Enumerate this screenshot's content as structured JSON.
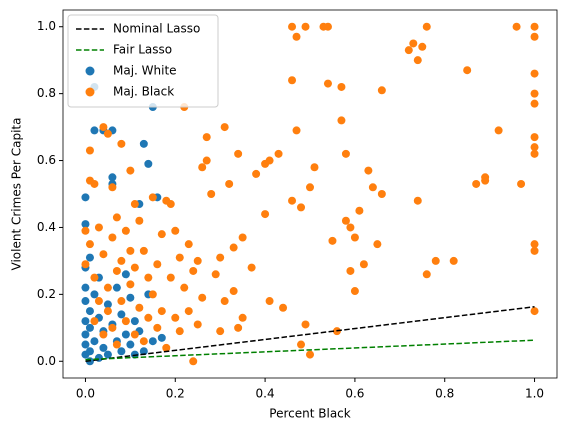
{
  "chart_data": {
    "type": "scatter",
    "xlabel": "Percent Black",
    "ylabel": "Violent Crimes Per Capita",
    "xlim": [
      -0.05,
      1.05
    ],
    "ylim": [
      -0.05,
      1.05
    ],
    "xticks": [
      {
        "value": 0,
        "label": "0.0"
      },
      {
        "value": 0.2,
        "label": "0.2"
      },
      {
        "value": 0.4,
        "label": "0.4"
      },
      {
        "value": 0.6,
        "label": "0.6"
      },
      {
        "value": 0.8,
        "label": "0.8"
      },
      {
        "value": 1,
        "label": "1.0"
      }
    ],
    "yticks": [
      {
        "value": 0,
        "label": "0.0"
      },
      {
        "value": 0.2,
        "label": "0.2"
      },
      {
        "value": 0.4,
        "label": "0.4"
      },
      {
        "value": 0.6,
        "label": "0.6"
      },
      {
        "value": 0.8,
        "label": "0.8"
      },
      {
        "value": 1,
        "label": "1.0"
      }
    ],
    "grid": false,
    "legend": "upper left",
    "series": [
      {
        "name": "Nominal Lasso",
        "type": "line",
        "linestyle": "dashed",
        "color": "#000000",
        "x": [
          0,
          1
        ],
        "values": [
          0,
          0.163
        ]
      },
      {
        "name": "Fair Lasso",
        "type": "line",
        "linestyle": "dashed",
        "color": "#008000",
        "x": [
          0,
          1
        ],
        "values": [
          0.005,
          0.063
        ]
      },
      {
        "name": "Maj. White",
        "type": "scatter",
        "color": "#1f77b4",
        "x": [
          0,
          0,
          0,
          0,
          0,
          0,
          0,
          0,
          0,
          0.01,
          0.01,
          0.01,
          0.01,
          0.01,
          0.02,
          0.02,
          0.02,
          0.02,
          0.03,
          0.03,
          0.03,
          0.04,
          0.04,
          0.04,
          0.05,
          0.05,
          0.06,
          0.06,
          0.06,
          0.06,
          0.07,
          0.07,
          0.08,
          0.08,
          0.09,
          0.09,
          0.1,
          0.1,
          0.11,
          0.11,
          0.12,
          0.12,
          0.13,
          0.13,
          0.14,
          0.14,
          0.15,
          0.15,
          0.16,
          0.17
        ],
        "values": [
          0.02,
          0.05,
          0.08,
          0.12,
          0.18,
          0.22,
          0.28,
          0.41,
          0.49,
          0,
          0.03,
          0.1,
          0.15,
          0.31,
          0.82,
          0.69,
          0.06,
          0.2,
          0.01,
          0.13,
          0.25,
          0.69,
          0.04,
          0.09,
          0.17,
          0.02,
          0.55,
          0.53,
          0.69,
          0.11,
          0.06,
          0.22,
          0.03,
          0.14,
          0.08,
          0.26,
          0.05,
          0.19,
          0.12,
          0.02,
          0.47,
          0.09,
          0.65,
          0.03,
          0.59,
          0.2,
          0.76,
          0.06,
          0.49,
          0.07
        ]
      },
      {
        "name": "Maj. Black",
        "type": "scatter",
        "color": "#ff7f0e",
        "x": [
          0,
          0,
          0.01,
          0.01,
          0.01,
          0.02,
          0.02,
          0.02,
          0.03,
          0.03,
          0.04,
          0.04,
          0.04,
          0.05,
          0.05,
          0.05,
          0.06,
          0.06,
          0.06,
          0.07,
          0.07,
          0.07,
          0.08,
          0.08,
          0.08,
          0.09,
          0.09,
          0.1,
          0.1,
          0.1,
          0.11,
          0.11,
          0.11,
          0.12,
          0.12,
          0.13,
          0.13,
          0.14,
          0.14,
          0.15,
          0.15,
          0.16,
          0.16,
          0.17,
          0.17,
          0.18,
          0.18,
          0.19,
          0.19,
          0.2,
          0.2,
          0.21,
          0.21,
          0.22,
          0.22,
          0.23,
          0.23,
          0.24,
          0.24,
          0.25,
          0.25,
          0.26,
          0.26,
          0.27,
          0.27,
          0.28,
          0.29,
          0.3,
          0.3,
          0.31,
          0.31,
          0.32,
          0.33,
          0.33,
          0.34,
          0.34,
          0.35,
          0.35,
          0.37,
          0.38,
          0.4,
          0.4,
          0.41,
          0.41,
          0.43,
          0.44,
          0.46,
          0.46,
          0.46,
          0.47,
          0.47,
          0.48,
          0.49,
          0.49,
          0.5,
          0.5,
          0.51,
          0.53,
          0.54,
          0.54,
          0.55,
          0.56,
          0.57,
          0.57,
          0.58,
          0.58,
          0.59,
          0.59,
          0.6,
          0.6,
          0.61,
          0.62,
          0.63,
          0.64,
          0.65,
          0.66,
          0.66,
          0.72,
          0.73,
          0.74,
          0.74,
          0.75,
          0.76,
          0.76,
          0.78,
          0.82,
          0.85,
          0.87,
          0.89,
          0.89,
          0.92,
          0.96,
          0.97,
          1,
          1,
          1,
          1,
          1,
          1,
          1,
          1,
          1,
          1,
          1,
          0.48
        ],
        "values": [
          0.29,
          0.39,
          0.63,
          0.54,
          0.35,
          0.53,
          0.25,
          0.12,
          0.4,
          0.18,
          0.7,
          0.32,
          0.08,
          0.68,
          0.22,
          0.15,
          0.52,
          0.37,
          0.1,
          0.43,
          0.27,
          0.05,
          0.65,
          0.3,
          0.18,
          0.39,
          0.12,
          0.57,
          0.33,
          0.23,
          0.47,
          0.28,
          0.08,
          0.42,
          0.16,
          0.33,
          0.06,
          0.25,
          0.13,
          0.49,
          0.2,
          0.29,
          0.1,
          0.38,
          0.15,
          0.48,
          0.04,
          0.47,
          0.25,
          0.39,
          0.13,
          0.31,
          0.09,
          0.76,
          0.22,
          0.35,
          0.15,
          0,
          0.27,
          0.3,
          0.11,
          0.58,
          0.19,
          0.6,
          0.67,
          0.5,
          0.26,
          0.09,
          0.31,
          0.7,
          0.18,
          0.53,
          0.34,
          0.21,
          0.62,
          0.1,
          0.37,
          0.13,
          0.28,
          0.56,
          0.44,
          0.59,
          0.6,
          0.18,
          0.62,
          0.16,
          0.84,
          1,
          0.48,
          0.97,
          0.69,
          0.46,
          1,
          0.11,
          0.52,
          0.02,
          0.58,
          1,
          1,
          0.83,
          0.36,
          0.09,
          0.82,
          0.72,
          0.62,
          0.42,
          0.4,
          0.27,
          0.37,
          0.21,
          0.45,
          0.29,
          0.57,
          0.52,
          0.35,
          0.81,
          0.5,
          0.93,
          0.95,
          0.9,
          0.48,
          0.94,
          1,
          0.26,
          0.3,
          0.3,
          0.87,
          0.53,
          0.55,
          0.54,
          0.69,
          1,
          0.53,
          1,
          0.97,
          0.86,
          0.8,
          0.77,
          0.67,
          0.64,
          0.62,
          0.35,
          0.33,
          0.15,
          0.05
        ]
      }
    ]
  }
}
